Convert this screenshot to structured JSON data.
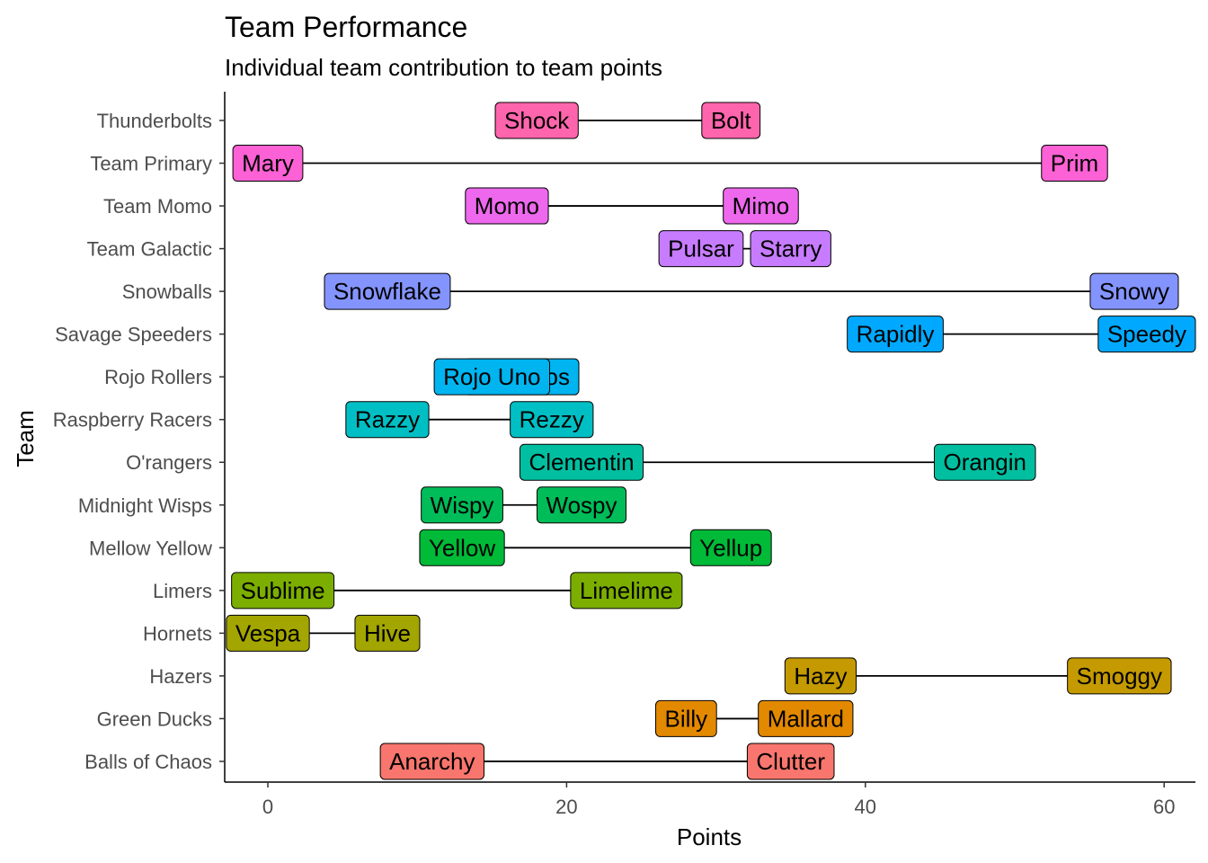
{
  "chart_data": {
    "type": "dumbbell",
    "title": "Team Performance",
    "subtitle": "Individual team contribution to team points",
    "xlabel": "Points",
    "ylabel": "Team",
    "xlim": [
      -3,
      62
    ],
    "xticks": [
      0,
      20,
      40,
      60
    ],
    "grid": false,
    "legend": "none",
    "categories": [
      "Thunderbolts",
      "Team Primary",
      "Team Momo",
      "Team Galactic",
      "Snowballs",
      "Savage Speeders",
      "Rojo Rollers",
      "Raspberry Racers",
      "O'rangers",
      "Midnight Wisps",
      "Mellow Yellow",
      "Limers",
      "Hornets",
      "Hazers",
      "Green Ducks",
      "Balls of Chaos"
    ],
    "series": [
      {
        "team": "Thunderbolts",
        "color": "#FF65AC",
        "low": {
          "name": "Shock",
          "value": 18
        },
        "high": {
          "name": "Bolt",
          "value": 31
        }
      },
      {
        "team": "Team Primary",
        "color": "#FC61D5",
        "low": {
          "name": "Mary",
          "value": 0
        },
        "high": {
          "name": "Prim",
          "value": 54
        }
      },
      {
        "team": "Team Momo",
        "color": "#ED68ED",
        "low": {
          "name": "Momo",
          "value": 16
        },
        "high": {
          "name": "Mimo",
          "value": 33
        }
      },
      {
        "team": "Team Galactic",
        "color": "#C77CFF",
        "low": {
          "name": "Pulsar",
          "value": 29
        },
        "high": {
          "name": "Starry",
          "value": 35
        }
      },
      {
        "team": "Snowballs",
        "color": "#8494FF",
        "low": {
          "name": "Snowflake",
          "value": 8
        },
        "high": {
          "name": "Snowy",
          "value": 58
        }
      },
      {
        "team": "Savage Speeders",
        "color": "#00A9FF",
        "low": {
          "name": "Rapidly",
          "value": 42
        },
        "high": {
          "name": "Speedy",
          "value": 59
        }
      },
      {
        "team": "Rojo Rollers",
        "color": "#00B4EF",
        "low": {
          "name": "Rojo Uno",
          "value": 15
        },
        "high": {
          "name": "Rojo Dos",
          "value": 17
        }
      },
      {
        "team": "Raspberry Racers",
        "color": "#00BFC4",
        "low": {
          "name": "Razzy",
          "value": 8
        },
        "high": {
          "name": "Rezzy",
          "value": 19
        }
      },
      {
        "team": "O'rangers",
        "color": "#00BFA0",
        "low": {
          "name": "Clementin",
          "value": 21
        },
        "high": {
          "name": "Orangin",
          "value": 48
        }
      },
      {
        "team": "Midnight Wisps",
        "color": "#00BC59",
        "low": {
          "name": "Wispy",
          "value": 13
        },
        "high": {
          "name": "Wospy",
          "value": 21
        }
      },
      {
        "team": "Mellow Yellow",
        "color": "#00BA38",
        "low": {
          "name": "Yellow",
          "value": 13
        },
        "high": {
          "name": "Yellup",
          "value": 31
        }
      },
      {
        "team": "Limers",
        "color": "#7CAE00",
        "low": {
          "name": "Sublime",
          "value": 1
        },
        "high": {
          "name": "Limelime",
          "value": 24
        }
      },
      {
        "team": "Hornets",
        "color": "#A3A500",
        "low": {
          "name": "Vespa",
          "value": 0
        },
        "high": {
          "name": "Hive",
          "value": 8
        }
      },
      {
        "team": "Hazers",
        "color": "#C49A00",
        "low": {
          "name": "Hazy",
          "value": 37
        },
        "high": {
          "name": "Smoggy",
          "value": 57
        }
      },
      {
        "team": "Green Ducks",
        "color": "#E38900",
        "low": {
          "name": "Billy",
          "value": 28
        },
        "high": {
          "name": "Mallard",
          "value": 36
        }
      },
      {
        "team": "Balls of Chaos",
        "color": "#F8766D",
        "low": {
          "name": "Anarchy",
          "value": 11
        },
        "high": {
          "name": "Clutter",
          "value": 35
        }
      }
    ]
  }
}
